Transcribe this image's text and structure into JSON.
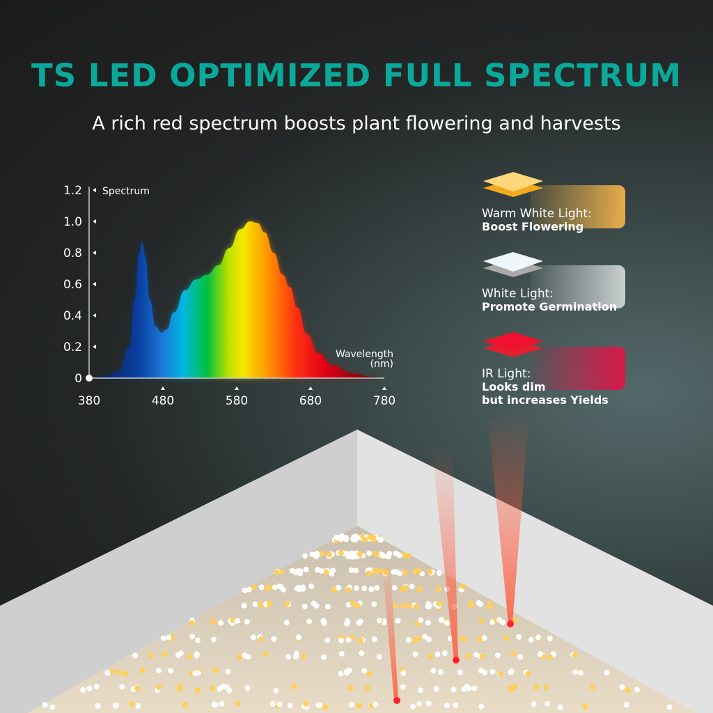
{
  "header": {
    "title": "TS LED OPTIMIZED FULL SPECTRUM",
    "subtitle": "A rich red spectrum boosts plant flowering and harvests",
    "title_color": "#0aa99a"
  },
  "chart_data": {
    "type": "area",
    "title": "",
    "ylabel": "Spectrum",
    "xlabel": "Wavelength (nm)",
    "xlabel_line1": "Wavelength",
    "xlabel_line2": "(nm)",
    "xlim": [
      380,
      780
    ],
    "ylim": [
      0,
      1.2
    ],
    "grid": false,
    "x_ticks": [
      "380",
      "480",
      "580",
      "680",
      "780"
    ],
    "y_ticks": [
      "0",
      "0.2",
      "0.4",
      "0.6",
      "0.8",
      "1.0",
      "1.2"
    ],
    "x": [
      380,
      400,
      420,
      435,
      442,
      448,
      452,
      456,
      462,
      470,
      478,
      485,
      495,
      510,
      525,
      540,
      555,
      570,
      585,
      598,
      608,
      618,
      630,
      642,
      652,
      662,
      675,
      690,
      710,
      735,
      760,
      780
    ],
    "values": [
      0,
      0.01,
      0.04,
      0.2,
      0.5,
      0.8,
      0.87,
      0.78,
      0.5,
      0.33,
      0.29,
      0.31,
      0.42,
      0.56,
      0.63,
      0.66,
      0.72,
      0.83,
      0.95,
      1.0,
      0.99,
      0.93,
      0.8,
      0.66,
      0.58,
      0.45,
      0.28,
      0.16,
      0.08,
      0.03,
      0.01,
      0.0
    ]
  },
  "legend": [
    {
      "label": "Warm White Light:",
      "desc": [
        "Boost Flowering"
      ],
      "color": "#f5b73c"
    },
    {
      "label": "White Light:",
      "desc": [
        "Promote Germination"
      ],
      "color": "#e8eef0"
    },
    {
      "label": "IR Light:",
      "desc": [
        "Looks dim",
        "but increases Yields"
      ],
      "color": "#e8142e"
    }
  ]
}
